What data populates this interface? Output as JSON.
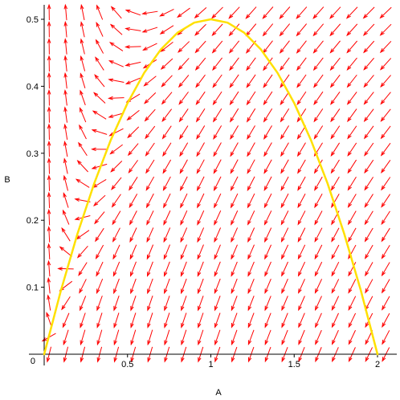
{
  "chart_data": {
    "type": "line",
    "subtype": "direction-field-with-solution-curve",
    "title": "",
    "xlabel": "A",
    "ylabel": "B",
    "xlim": [
      0,
      2.1
    ],
    "ylim": [
      0,
      0.52
    ],
    "origin_label": "0",
    "x_ticks": [
      0.5,
      1,
      1.5,
      2
    ],
    "x_tick_labels": [
      "0.5",
      "1",
      "1.5",
      "2"
    ],
    "y_ticks": [
      0.1,
      0.2,
      0.3,
      0.4,
      0.5
    ],
    "y_tick_labels": [
      "0.1",
      "0.2",
      "0.3",
      "0.4",
      "0.5"
    ],
    "grid": false,
    "series": [
      {
        "kind": "curve",
        "color": "#ffe000",
        "x": [
          0,
          0.1,
          0.2,
          0.3,
          0.4,
          0.5,
          0.6,
          0.7,
          0.8,
          0.9,
          1.0,
          1.1,
          1.2,
          1.3,
          1.4,
          1.5,
          1.6,
          1.7,
          1.8,
          1.9,
          2.0
        ],
        "y": [
          0,
          0.095,
          0.18,
          0.255,
          0.32,
          0.375,
          0.42,
          0.455,
          0.48,
          0.495,
          0.5,
          0.495,
          0.48,
          0.455,
          0.42,
          0.375,
          0.32,
          0.255,
          0.18,
          0.095,
          0
        ]
      },
      {
        "kind": "direction-field",
        "color": "#ff0000",
        "x_min": 0.03,
        "x_max": 2.05,
        "nx": 21,
        "y_min": 0.0,
        "y_max": 0.51,
        "ny": 21
      }
    ]
  }
}
